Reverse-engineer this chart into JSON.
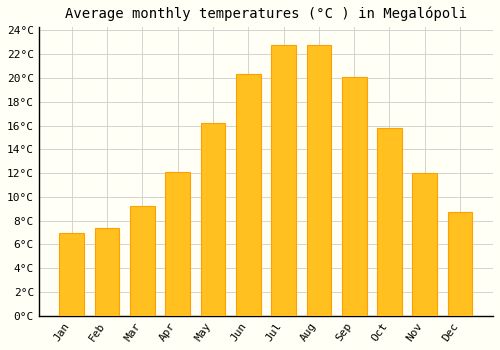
{
  "title": "Average monthly temperatures (°C ) in Megalópoli",
  "months": [
    "Jan",
    "Feb",
    "Mar",
    "Apr",
    "May",
    "Jun",
    "Jul",
    "Aug",
    "Sep",
    "Oct",
    "Nov",
    "Dec"
  ],
  "temperatures": [
    7.0,
    7.4,
    9.2,
    12.1,
    16.2,
    20.3,
    22.8,
    22.8,
    20.1,
    15.8,
    12.0,
    8.7
  ],
  "bar_color": "#FFC020",
  "bar_edge_color": "#FFA000",
  "background_color": "#FFFFF5",
  "grid_color": "#CCCCCC",
  "ylim": [
    0,
    24
  ],
  "ytick_step": 2,
  "title_fontsize": 10,
  "tick_fontsize": 8,
  "font_family": "monospace"
}
